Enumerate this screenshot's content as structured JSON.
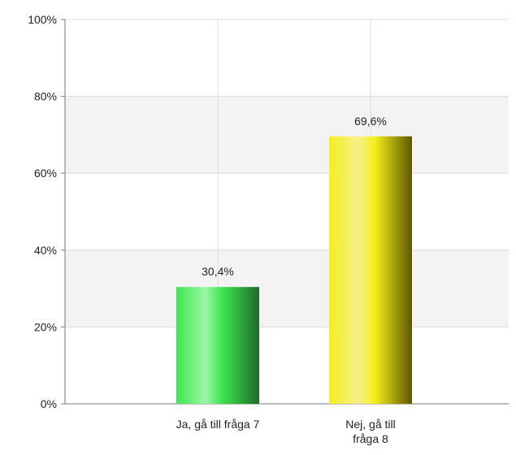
{
  "chart_data": {
    "type": "bar",
    "categories": [
      "Ja, gå till fråga 7",
      "Nej, gå till fråga 8"
    ],
    "category_lines": [
      [
        "Ja, gå till fråga 7"
      ],
      [
        "Nej, gå till",
        "fråga 8"
      ]
    ],
    "values": [
      30.4,
      69.6
    ],
    "data_labels": [
      "30,4%",
      "69,6%"
    ],
    "y_ticks": [
      0,
      20,
      40,
      60,
      80,
      100
    ],
    "y_tick_labels": [
      "0%",
      "20%",
      "40%",
      "60%",
      "80%",
      "100%"
    ],
    "ylim": [
      0,
      100
    ],
    "grid": true,
    "bar_colors": [
      {
        "light": "#9cf7a6",
        "base": "#3de650",
        "dark": "#1f6b2c"
      },
      {
        "light": "#f5f08a",
        "base": "#f5ef1d",
        "dark": "#5e5700"
      }
    ],
    "band_color": "#f3f3f3",
    "grid_color": "#dcdcdc"
  }
}
